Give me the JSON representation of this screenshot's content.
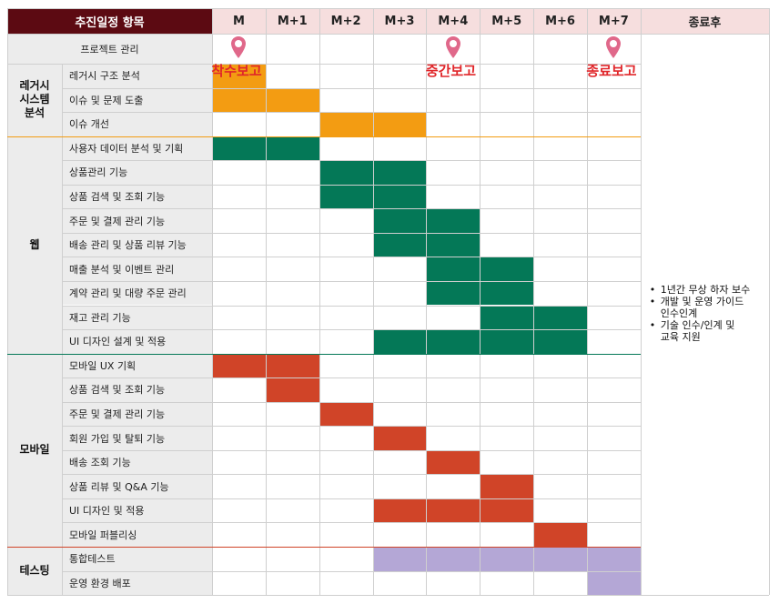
{
  "header": {
    "items_title": "추진일정 항목",
    "months": [
      "M",
      "M+1",
      "M+2",
      "M+3",
      "M+4",
      "M+5",
      "M+6",
      "M+7"
    ],
    "after_title": "종료후"
  },
  "project_row": {
    "label": "프로젝트 관리"
  },
  "milestones": [
    {
      "label": "착수보고",
      "month": 0
    },
    {
      "label": "중간보고",
      "month": 4
    },
    {
      "label": "종료보고",
      "month": 7
    }
  ],
  "categories": [
    {
      "name": "레거시\n시스템\n분석",
      "color": "#f39c12",
      "tasks": [
        {
          "label": "레거시 구조 분석",
          "bars": [
            [
              0,
              1
            ]
          ]
        },
        {
          "label": "이슈 및 문제 도출",
          "bars": [
            [
              0,
              2
            ]
          ]
        },
        {
          "label": "이슈 개선",
          "bars": [
            [
              2,
              4
            ]
          ]
        }
      ]
    },
    {
      "name": "웹",
      "color": "#047857",
      "tasks": [
        {
          "label": "사용자 데이터 분석 및 기획",
          "bars": [
            [
              0,
              2
            ]
          ]
        },
        {
          "label": "상품관리 기능",
          "bars": [
            [
              2,
              4
            ]
          ]
        },
        {
          "label": "상품 검색 및 조회 기능",
          "bars": [
            [
              2,
              4
            ]
          ]
        },
        {
          "label": "주문 및 결제 관리 기능",
          "bars": [
            [
              3,
              5
            ]
          ]
        },
        {
          "label": "배송 관리 및 상품 리뷰 기능",
          "bars": [
            [
              3,
              5
            ]
          ]
        },
        {
          "label": "매출 분석 및 이벤트 관리",
          "bars": [
            [
              4,
              6
            ]
          ]
        },
        {
          "label": "계약 관리 및 대량 주문 관리",
          "bars": [
            [
              4,
              6
            ]
          ]
        },
        {
          "label": "재고 관리 기능",
          "bars": [
            [
              5,
              7
            ]
          ]
        },
        {
          "label": "UI 디자인 설계 및 적용",
          "bars": [
            [
              3,
              7
            ]
          ]
        }
      ]
    },
    {
      "name": "모바일",
      "color": "#d04428",
      "tasks": [
        {
          "label": "모바일 UX 기획",
          "bars": [
            [
              0,
              2
            ]
          ]
        },
        {
          "label": "상품 검색 및 조회 기능",
          "bars": [
            [
              1,
              2
            ]
          ]
        },
        {
          "label": "주문 및 결제 관리 기능",
          "bars": [
            [
              2,
              3
            ]
          ]
        },
        {
          "label": "회원 가입 및 탈퇴 기능",
          "bars": [
            [
              3,
              4
            ]
          ]
        },
        {
          "label": "배송 조회 기능",
          "bars": [
            [
              4,
              5
            ]
          ]
        },
        {
          "label": "상품 리뷰 및 Q&A 기능",
          "bars": [
            [
              5,
              6
            ]
          ]
        },
        {
          "label": "UI 디자인 및 적용",
          "bars": [
            [
              3,
              6
            ]
          ]
        },
        {
          "label": "모바일 퍼블리싱",
          "bars": [
            [
              6,
              7
            ]
          ]
        }
      ]
    },
    {
      "name": "테스팅",
      "color": "#b4a7d6",
      "tasks": [
        {
          "label": "통합테스트",
          "bars": [
            [
              3,
              8
            ]
          ]
        },
        {
          "label": "운영 환경 배포",
          "bars": [
            [
              7,
              8
            ]
          ]
        }
      ]
    }
  ],
  "after_notes": [
    "1년간 무상 하자 보수",
    "개발 및 운영 가이드\n인수인계",
    "기술 인수/인계 및\n교육 지원"
  ],
  "colors": {
    "header_dark": "#5c0a12",
    "header_light": "#f6dede",
    "label_bg": "#ececec",
    "sep_legacy": "#f39c12",
    "sep_web": "#047857",
    "sep_mobile": "#d04428",
    "pin": "#e0688a"
  }
}
